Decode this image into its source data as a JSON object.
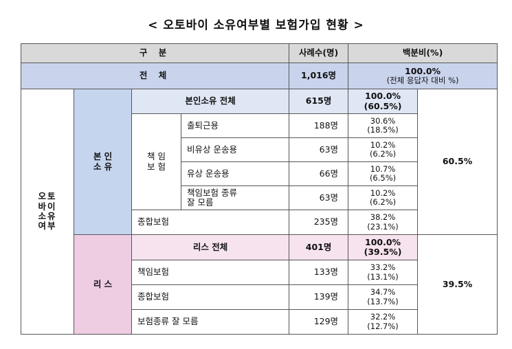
{
  "title": "< 오토바이 소유여부별 보험가입 현황 >",
  "header": {
    "category": "구      분",
    "cases": "사례수(명)",
    "percent": "백분비(%)"
  },
  "total_row": {
    "label": "전      체",
    "cases": "1,016명",
    "percent": "100.0%",
    "percent_note": "(전체 응답자 대비 %)"
  },
  "side_label": [
    "오토",
    "바이",
    "소유",
    "여부"
  ],
  "owner": {
    "group_label": [
      "본 인",
      "소 유"
    ],
    "subtotal": {
      "label": "본인소유 전체",
      "cases": "615명",
      "pct": "100.0%",
      "pct_total": "(60.5%)"
    },
    "liability_label": [
      "책 임",
      "보 험"
    ],
    "liability_rows": [
      {
        "label": "출퇴근용",
        "cases": "188명",
        "pct": "30.6%",
        "pct_total": "(18.5%)"
      },
      {
        "label": "비유상 운송용",
        "cases": "63명",
        "pct": "10.2%",
        "pct_total": "(6.2%)"
      },
      {
        "label": "유상 운송용",
        "cases": "66명",
        "pct": "10.7%",
        "pct_total": "(6.5%)"
      },
      {
        "label": "책임보험 종류 잘 모름",
        "label_lines": [
          "책임보험 종류",
          "잘 모름"
        ],
        "cases": "63명",
        "pct": "10.2%",
        "pct_total": "(6.2%)"
      }
    ],
    "comprehensive": {
      "label": "종합보험",
      "cases": "235명",
      "pct": "38.2%",
      "pct_total": "(23.1%)"
    },
    "share": "60.5%"
  },
  "lease": {
    "group_label": "리 스",
    "subtotal": {
      "label": "리스 전체",
      "cases": "401명",
      "pct": "100.0%",
      "pct_total": "(39.5%)"
    },
    "rows": [
      {
        "label": "책임보험",
        "cases": "133명",
        "pct": "33.2%",
        "pct_total": "(13.1%)"
      },
      {
        "label": "종합보험",
        "cases": "139명",
        "pct": "34.7%",
        "pct_total": "(13.7%)"
      },
      {
        "label": "보험종류 잘 모름",
        "cases": "129명",
        "pct": "32.2%",
        "pct_total": "(12.7%)"
      }
    ],
    "share": "39.5%"
  }
}
